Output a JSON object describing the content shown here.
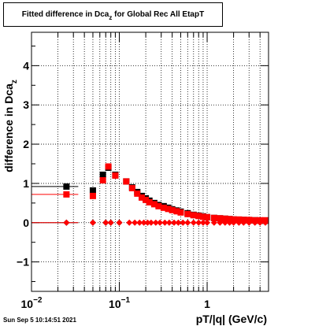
{
  "chart_data": {
    "type": "scatter",
    "title_main": "Fitted difference in Dca",
    "title_sub": "z",
    "title_rest": " for Global Rec All EtapT",
    "xlabel": "pT/|q| (GeV/c)",
    "ylabel_main": "difference in Dca",
    "ylabel_sub": "z",
    "xscale": "log",
    "xlim": [
      0.01,
      5.0
    ],
    "ylim": [
      -1.75,
      4.85
    ],
    "grid": true,
    "x_ticks": [
      {
        "value": 0.01,
        "base": "10",
        "exp": "−2"
      },
      {
        "value": 0.1,
        "base": "10",
        "exp": "−1"
      },
      {
        "value": 1,
        "base": "1",
        "exp": ""
      }
    ],
    "y_ticks": [
      "−1",
      "0",
      "1",
      "2",
      "3",
      "4"
    ],
    "series": [
      {
        "color": "#000000",
        "marker": "square",
        "x": [
          0.025,
          0.05,
          0.065,
          0.075,
          0.09,
          0.12,
          0.14,
          0.16,
          0.18,
          0.2,
          0.22,
          0.25,
          0.28,
          0.32,
          0.36,
          0.4,
          0.45,
          0.5,
          0.6,
          0.7,
          0.8,
          0.9,
          1.0,
          1.2,
          1.4,
          1.6,
          1.8,
          2.0,
          2.3,
          2.6,
          3.0,
          3.5,
          4.0,
          4.6
        ],
        "y": [
          0.92,
          0.82,
          1.22,
          1.4,
          1.22,
          1.05,
          0.9,
          0.78,
          0.68,
          0.62,
          0.56,
          0.5,
          0.45,
          0.42,
          0.38,
          0.34,
          0.31,
          0.28,
          0.24,
          0.2,
          0.18,
          0.16,
          0.14,
          0.12,
          0.11,
          0.1,
          0.09,
          0.08,
          0.07,
          0.07,
          0.06,
          0.06,
          0.05,
          0.05
        ]
      },
      {
        "color": "#ff0000",
        "marker": "square",
        "x": [
          0.025,
          0.05,
          0.065,
          0.075,
          0.09,
          0.12,
          0.14,
          0.16,
          0.18,
          0.2,
          0.22,
          0.25,
          0.28,
          0.32,
          0.36,
          0.4,
          0.45,
          0.5,
          0.6,
          0.7,
          0.8,
          0.9,
          1.0,
          1.2,
          1.4,
          1.6,
          1.8,
          2.0,
          2.3,
          2.6,
          3.0,
          3.5,
          4.0,
          4.6
        ],
        "y": [
          0.72,
          0.68,
          1.08,
          1.43,
          1.2,
          1.05,
          0.88,
          0.74,
          0.64,
          0.58,
          0.52,
          0.47,
          0.42,
          0.38,
          0.35,
          0.32,
          0.29,
          0.26,
          0.22,
          0.19,
          0.17,
          0.15,
          0.14,
          0.12,
          0.11,
          0.1,
          0.09,
          0.08,
          0.08,
          0.07,
          0.07,
          0.06,
          0.06,
          0.06
        ]
      },
      {
        "color": "#000000",
        "marker": "diamond",
        "x": [
          0.025,
          0.05,
          0.07,
          0.08,
          0.1
        ],
        "y": [
          0.0,
          0.0,
          0.0,
          0.0,
          0.0
        ]
      },
      {
        "color": "#ff0000",
        "marker": "diamond",
        "x": [
          0.025,
          0.05,
          0.07,
          0.08,
          0.1,
          0.13,
          0.15,
          0.17,
          0.19,
          0.21,
          0.23,
          0.26,
          0.29,
          0.33,
          0.37,
          0.42,
          0.47,
          0.53,
          0.6,
          0.7,
          0.8,
          0.9,
          1.0,
          1.2,
          1.4,
          1.6,
          1.8,
          2.0,
          2.3,
          2.6,
          3.0,
          3.5,
          4.0,
          4.6
        ],
        "y": [
          0.0,
          0.0,
          0.0,
          0.0,
          0.0,
          0.0,
          0.0,
          0.0,
          0.0,
          0.0,
          0.0,
          0.0,
          0.0,
          0.0,
          0.0,
          0.0,
          0.0,
          0.0,
          0.0,
          0.0,
          0.0,
          0.0,
          0.0,
          0.0,
          0.0,
          0.0,
          0.0,
          0.0,
          0.0,
          0.0,
          0.0,
          0.0,
          0.0,
          0.0
        ]
      }
    ]
  },
  "footer": "Sun Sep  5 10:14:51 2021"
}
